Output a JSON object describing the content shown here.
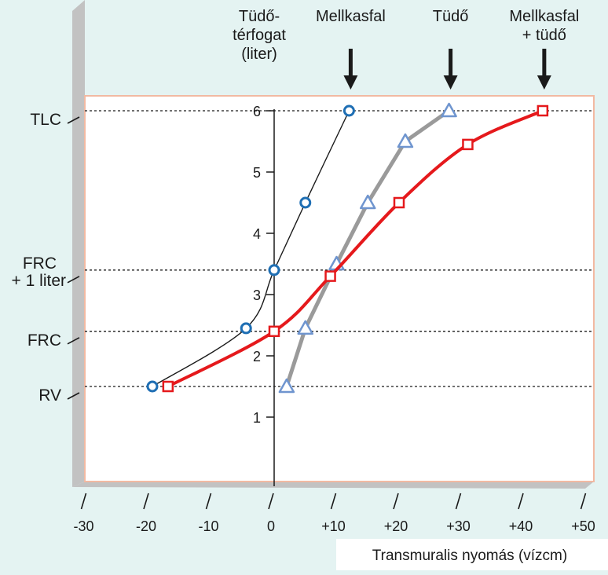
{
  "chart_data": {
    "type": "line",
    "title": "",
    "xlabel": "Transmuralis nyomás (vízcm)",
    "ylabel_lines": [
      "Tüdő-",
      "térfogat",
      "(liter)"
    ],
    "xlim": [
      -30,
      52
    ],
    "ylim": [
      0,
      6.2
    ],
    "x_ticks": [
      -30,
      -20,
      -10,
      0,
      10,
      20,
      30,
      40,
      50
    ],
    "x_tick_labels": [
      "-30",
      "-20",
      "-10",
      "0",
      "+10",
      "+20",
      "+30",
      "+40",
      "+50"
    ],
    "y_ticks": [
      1,
      2,
      3,
      4,
      5,
      6
    ],
    "y_tick_labels": [
      "1",
      "2",
      "3",
      "4",
      "5",
      "6"
    ],
    "reference_levels": [
      {
        "label_lines": [
          "TLC"
        ],
        "y": 6.0
      },
      {
        "label_lines": [
          "FRC",
          "+ 1 liter"
        ],
        "y": 3.4
      },
      {
        "label_lines": [
          "FRC"
        ],
        "y": 2.4
      },
      {
        "label_lines": [
          "RV"
        ],
        "y": 1.5
      }
    ],
    "series": [
      {
        "name": "Mellkasfal",
        "marker": "circle",
        "color": "#1f6fb4",
        "line_color": "#1a1a1a",
        "x": [
          -19.5,
          -4.5,
          0,
          5,
          12
        ],
        "y": [
          1.5,
          2.45,
          3.4,
          4.5,
          6.0
        ],
        "arrow_x": 12
      },
      {
        "name": "Tüdő",
        "marker": "triangle",
        "color": "#6f95cf",
        "line_color": "#9a9a9a",
        "x": [
          2,
          5,
          10,
          15,
          21,
          28
        ],
        "y": [
          1.5,
          2.45,
          3.5,
          4.5,
          5.5,
          6.0
        ],
        "arrow_x": 28
      },
      {
        "name": "Mellkasfal\n+ tüdő",
        "label_lines": [
          "Mellkasfal",
          "+ tüdő"
        ],
        "marker": "square",
        "color": "#e5191c",
        "line_color": "#e5191c",
        "x": [
          -17,
          0,
          9,
          20,
          31,
          43
        ],
        "y": [
          1.5,
          2.4,
          3.3,
          4.5,
          5.45,
          6.0
        ],
        "arrow_x": 43
      }
    ],
    "colors": {
      "background": "#e4f3f2",
      "plot_background": "#ffffff",
      "plot_border": "#f2b9a2",
      "shadow": "#c2c2c2",
      "axis": "#1a1a1a"
    }
  }
}
